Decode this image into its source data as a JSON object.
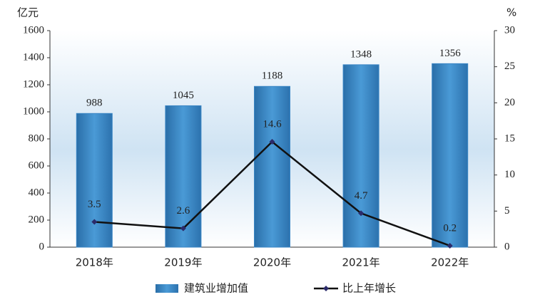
{
  "chart_data": {
    "type": "bar",
    "y_unit": "亿元",
    "y2_unit": "%",
    "categories": [
      "2018年",
      "2019年",
      "2020年",
      "2021年",
      "2022年"
    ],
    "series": [
      {
        "name": "建筑业增加值",
        "type": "bar",
        "color": "#3a86c5",
        "values": [
          988,
          1045,
          1188,
          1348,
          1356
        ]
      },
      {
        "name": "比上年增长",
        "type": "line",
        "axis": "y2",
        "color": "#111111",
        "marker_color": "#2b2b6b",
        "values": [
          3.5,
          2.6,
          14.6,
          4.7,
          0.2
        ]
      }
    ],
    "ylim": [
      0,
      1600
    ],
    "yticks": [
      0,
      200,
      400,
      600,
      800,
      1000,
      1200,
      1400,
      1600
    ],
    "y2lim": [
      0,
      30
    ],
    "y2ticks": [
      0,
      5,
      10,
      15,
      20,
      25,
      30
    ],
    "grid": false
  }
}
